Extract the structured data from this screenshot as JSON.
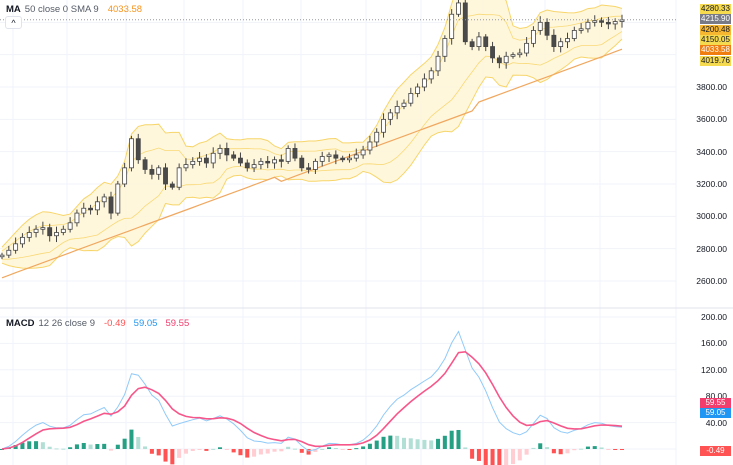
{
  "legends": {
    "ma": {
      "name": "MA",
      "params": "50 close 0 SMA 9",
      "value": "4033.58",
      "value_color": "#f7931a"
    },
    "macd": {
      "name": "MACD",
      "params": "12 26 close 9",
      "hist": "-0.49",
      "hist_color": "#ff5252",
      "macd": "59.05",
      "macd_color": "#2196f3",
      "signal": "59.55",
      "signal_color": "#f23d6d"
    }
  },
  "collapse_button": {
    "icon": "chevron-up-icon",
    "glyph": "^"
  },
  "price_axis": {
    "labels": [
      "3800.00",
      "3600.00",
      "3400.00",
      "3200.00",
      "3000.00",
      "2800.00",
      "2600.00"
    ]
  },
  "price_tags": [
    {
      "text": "4280.33",
      "bg": "#f5d94e",
      "fg": "#131722"
    },
    {
      "text": "4215.90",
      "bg": "#787b86",
      "fg": "#ffffff"
    },
    {
      "text": "4200.48",
      "bg": "#f7b731",
      "fg": "#131722"
    },
    {
      "text": "4150.05",
      "bg": "#f5d94e",
      "fg": "#131722"
    },
    {
      "text": "4033.58",
      "bg": "#ef7d0f",
      "fg": "#ffffff"
    },
    {
      "text": "4019.76",
      "bg": "#f5d94e",
      "fg": "#131722"
    }
  ],
  "macd_axis": {
    "labels": [
      "200.00",
      "160.00",
      "120.00",
      "80.00",
      "40.00"
    ]
  },
  "macd_tags": [
    {
      "text": "59.55",
      "bg": "#f23d6d",
      "fg": "#ffffff"
    },
    {
      "text": "59.05",
      "bg": "#2196f3",
      "fg": "#ffffff"
    },
    {
      "text": "-0.49",
      "bg": "#ff5252",
      "fg": "#ffffff"
    }
  ],
  "colors": {
    "band_fill": "#fff6d6",
    "band_line": "#f7d56a",
    "ma_line": "#f0a860",
    "up_candle": "#ffffff",
    "down_candle": "#4a4a4a",
    "wick": "#444444",
    "macd_line": "#90caf9",
    "signal_line": "#f7568a",
    "hist_up_strong": "#26a085",
    "hist_up_weak": "#b2dfd5",
    "hist_down_strong": "#ff5252",
    "hist_down_weak": "#ffcdd2",
    "grid": "#f0f3fa"
  },
  "chart_data": {
    "type": "candlestick+indicators",
    "title": "",
    "panes": [
      {
        "name": "price",
        "ylim": [
          2550,
          4300
        ],
        "y_ticks": [
          2600,
          2800,
          3000,
          3200,
          3400,
          3600,
          3800,
          4019.76,
          4033.58,
          4150.05,
          4200.48,
          4215.9,
          4280.33
        ],
        "last_price": 4215.9,
        "close_series": [
          2760,
          2790,
          2830,
          2870,
          2900,
          2920,
          2930,
          2880,
          2900,
          2920,
          2960,
          3020,
          3050,
          3040,
          3090,
          3120,
          3020,
          3200,
          3300,
          3480,
          3350,
          3290,
          3260,
          3300,
          3200,
          3180,
          3300,
          3320,
          3340,
          3360,
          3330,
          3390,
          3420,
          3380,
          3360,
          3330,
          3300,
          3320,
          3340,
          3330,
          3350,
          3340,
          3420,
          3360,
          3300,
          3290,
          3340,
          3370,
          3380,
          3360,
          3350,
          3360,
          3380,
          3410,
          3460,
          3520,
          3600,
          3640,
          3680,
          3700,
          3760,
          3800,
          3850,
          3900,
          3990,
          4100,
          4250,
          4320,
          4080,
          4050,
          4110,
          4050,
          3980,
          3950,
          3990,
          4000,
          4010,
          4070,
          4150,
          4200,
          4120,
          4050,
          4080,
          4100,
          4150,
          4160,
          4200,
          4210,
          4200,
          4190,
          4205,
          4215
        ],
        "bands": {
          "upper_end": 4280.33,
          "middle_end": 4150.05,
          "lower_end": 4019.76
        },
        "sma50_end": 4033.58
      },
      {
        "name": "MACD",
        "params": "12 26 close 9",
        "ylim": [
          -20,
          210
        ],
        "y_ticks": [
          40,
          80,
          120,
          160,
          200
        ],
        "macd_last": 59.05,
        "signal_last": 59.55,
        "hist_last": -0.49
      }
    ]
  }
}
